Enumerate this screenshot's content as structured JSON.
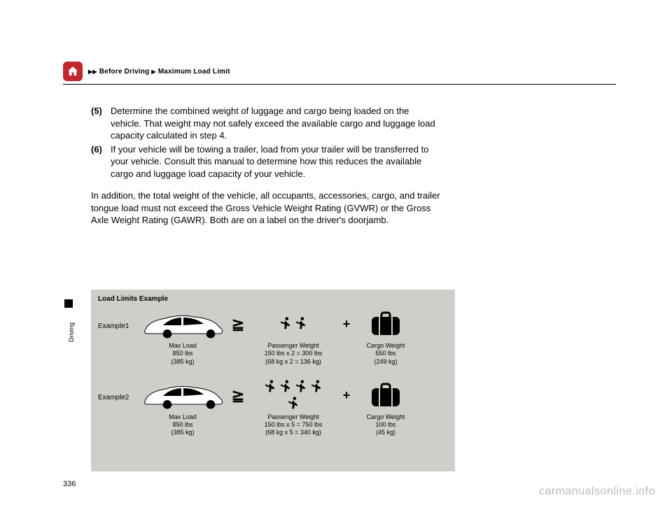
{
  "breadcrumb": {
    "sep1": "▶▶",
    "part1": "Before Driving",
    "sep2": "▶",
    "part2": "Maximum Load Limit"
  },
  "steps": {
    "s5_num": "(5)",
    "s5_text": "Determine the combined weight of luggage and cargo being loaded on the vehicle. That weight may not safely exceed the available cargo and luggage load capacity calculated in step 4.",
    "s6_num": "(6)",
    "s6_text": "If your vehicle will be towing a trailer, load from your trailer will be transferred to your vehicle. Consult this manual to determine how this reduces the available cargo and luggage load capacity of your vehicle."
  },
  "paragraph": "In addition, the total weight of the vehicle, all occupants, accessories, cargo, and trailer tongue load must not exceed the Gross Vehicle Weight Rating (GVWR) or the Gross Axle Weight Rating (GAWR). Both are on a label on the driver's doorjamb.",
  "side_label": "Driving",
  "box": {
    "title": "Load Limits Example",
    "ex1": {
      "label": "Example1",
      "maxload_l1": "Max Load",
      "maxload_l2": "850 lbs",
      "maxload_l3": "(385 kg)",
      "op": "≧",
      "pass_l1": "Passenger Weight",
      "pass_l2": "150 lbs x 2 = 300 lbs",
      "pass_l3": "(68 kg x 2 = 136 kg)",
      "plus": "+",
      "cargo_l1": "Cargo Weight",
      "cargo_l2": "550 lbs",
      "cargo_l3": "(249 kg)",
      "passenger_count": 2
    },
    "ex2": {
      "label": "Example2",
      "maxload_l1": "Max Load",
      "maxload_l2": "850 lbs",
      "maxload_l3": "(385 kg)",
      "op": "≧",
      "pass_l1": "Passenger Weight",
      "pass_l2": "150 lbs x 5 = 750 lbs",
      "pass_l3": "(68 kg x 5 = 340 kg)",
      "plus": "+",
      "cargo_l1": "Cargo Weight",
      "cargo_l2": "100 lbs",
      "cargo_l3": "(45 kg)",
      "passenger_count": 5
    }
  },
  "page_number": "336",
  "watermark": "carmanualsonline.info",
  "colors": {
    "home_bg": "#c1272d",
    "box_bg": "#cfcfc9",
    "watermark": "#bababa"
  }
}
